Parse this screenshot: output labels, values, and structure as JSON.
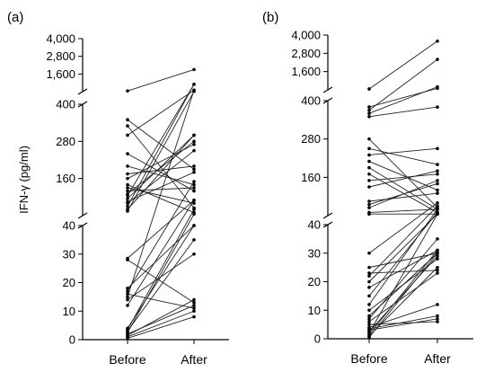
{
  "ylabel": "IFN-γ (pg/ml)",
  "chart_data": [
    {
      "type": "line",
      "panel_label": "(a)",
      "categories": [
        "Before",
        "After"
      ],
      "ylabel": "IFN-γ (pg/ml)",
      "y_scale": "broken axis with three segments",
      "segments": [
        {
          "range": [
            0,
            40
          ],
          "ticks": [
            "0",
            "10",
            "20",
            "30",
            "40"
          ]
        },
        {
          "range": [
            40,
            400
          ],
          "ticks": [
            "160",
            "280",
            "400"
          ]
        },
        {
          "range": [
            400,
            4000
          ],
          "ticks": [
            "1,600",
            "2,800",
            "4,000"
          ]
        }
      ],
      "pairs": [
        [
          0.5,
          8
        ],
        [
          1,
          10
        ],
        [
          1.5,
          14
        ],
        [
          2,
          12
        ],
        [
          2.5,
          45
        ],
        [
          3,
          35
        ],
        [
          3.5,
          60
        ],
        [
          4,
          40
        ],
        [
          12,
          90
        ],
        [
          14,
          30
        ],
        [
          15,
          500
        ],
        [
          16,
          11
        ],
        [
          17,
          150
        ],
        [
          18,
          40
        ],
        [
          28,
          13
        ],
        [
          28.5,
          90
        ],
        [
          55,
          420
        ],
        [
          60,
          300
        ],
        [
          70,
          900
        ],
        [
          80,
          250
        ],
        [
          85,
          180
        ],
        [
          95,
          300
        ],
        [
          105,
          900
        ],
        [
          110,
          280
        ],
        [
          120,
          130
        ],
        [
          130,
          80
        ],
        [
          140,
          50
        ],
        [
          160,
          270
        ],
        [
          175,
          200
        ],
        [
          200,
          140
        ],
        [
          240,
          120
        ],
        [
          300,
          500
        ],
        [
          330,
          65
        ],
        [
          350,
          190
        ],
        [
          450,
          1900
        ]
      ]
    },
    {
      "type": "line",
      "panel_label": "(b)",
      "categories": [
        "Before",
        "After"
      ],
      "ylabel": "IFN-γ (pg/ml)",
      "y_scale": "broken axis with three segments",
      "segments": [
        {
          "range": [
            0,
            40
          ],
          "ticks": [
            "0",
            "10",
            "20",
            "30",
            "40"
          ]
        },
        {
          "range": [
            40,
            400
          ],
          "ticks": [
            "160",
            "280",
            "400"
          ]
        },
        {
          "range": [
            400,
            4000
          ],
          "ticks": [
            "1,600",
            "2,800",
            "4,000"
          ]
        }
      ],
      "pairs": [
        [
          0.5,
          30
        ],
        [
          1,
          25
        ],
        [
          1.5,
          31
        ],
        [
          2,
          45
        ],
        [
          2.5,
          29
        ],
        [
          3,
          7
        ],
        [
          3.5,
          8
        ],
        [
          4,
          12
        ],
        [
          5,
          6
        ],
        [
          6,
          23
        ],
        [
          7,
          35
        ],
        [
          8,
          30
        ],
        [
          10,
          28
        ],
        [
          12,
          60
        ],
        [
          15,
          50
        ],
        [
          18,
          31
        ],
        [
          20,
          45
        ],
        [
          22,
          70
        ],
        [
          23,
          24
        ],
        [
          25,
          30
        ],
        [
          30,
          80
        ],
        [
          45,
          45
        ],
        [
          50,
          60
        ],
        [
          65,
          150
        ],
        [
          75,
          140
        ],
        [
          85,
          110
        ],
        [
          130,
          180
        ],
        [
          150,
          170
        ],
        [
          170,
          50
        ],
        [
          190,
          60
        ],
        [
          210,
          120
        ],
        [
          230,
          250
        ],
        [
          250,
          200
        ],
        [
          280,
          65
        ],
        [
          350,
          380
        ],
        [
          360,
          600
        ],
        [
          370,
          2400
        ],
        [
          380,
          500
        ],
        [
          460,
          3600
        ]
      ]
    }
  ]
}
